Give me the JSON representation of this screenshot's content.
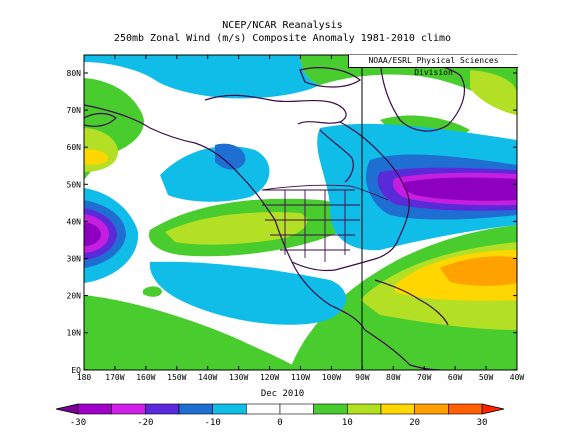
{
  "title": "NCEP/NCAR Reanalysis",
  "subtitle": "250mb Zonal Wind (m/s) Composite Anomaly 1981-2010 climo",
  "credit": "NOAA/ESRL Physical Sciences Division",
  "month_label": "Dec 2010",
  "lat_labels": [
    "80N",
    "70N",
    "60N",
    "50N",
    "40N",
    "30N",
    "20N",
    "10N",
    "EQ"
  ],
  "lon_labels": [
    "180",
    "170W",
    "160W",
    "150W",
    "140W",
    "130W",
    "120W",
    "110W",
    "100W",
    "90W",
    "80W",
    "70W",
    "60W",
    "50W",
    "40W"
  ],
  "colorbar": {
    "labels": [
      "-30",
      "-20",
      "-10",
      "0",
      "10",
      "20",
      "30"
    ],
    "colors": [
      "#a000c8",
      "#d020e8",
      "#5c28dc",
      "#1e6ed2",
      "#10bee8",
      "#ffffff",
      "#ffffff",
      "#48cc30",
      "#b0e020",
      "#ffd700",
      "#ffa000",
      "#ff5f00"
    ]
  },
  "colors": {
    "purple": "#8e00c0",
    "magenta": "#c51ee0",
    "indigo": "#5a2ad8",
    "blue": "#1f6fd3",
    "cyan": "#0fbde8",
    "green": "#49cc2e",
    "lime": "#b3e024",
    "yellow": "#ffd600",
    "orange": "#ffa200"
  }
}
